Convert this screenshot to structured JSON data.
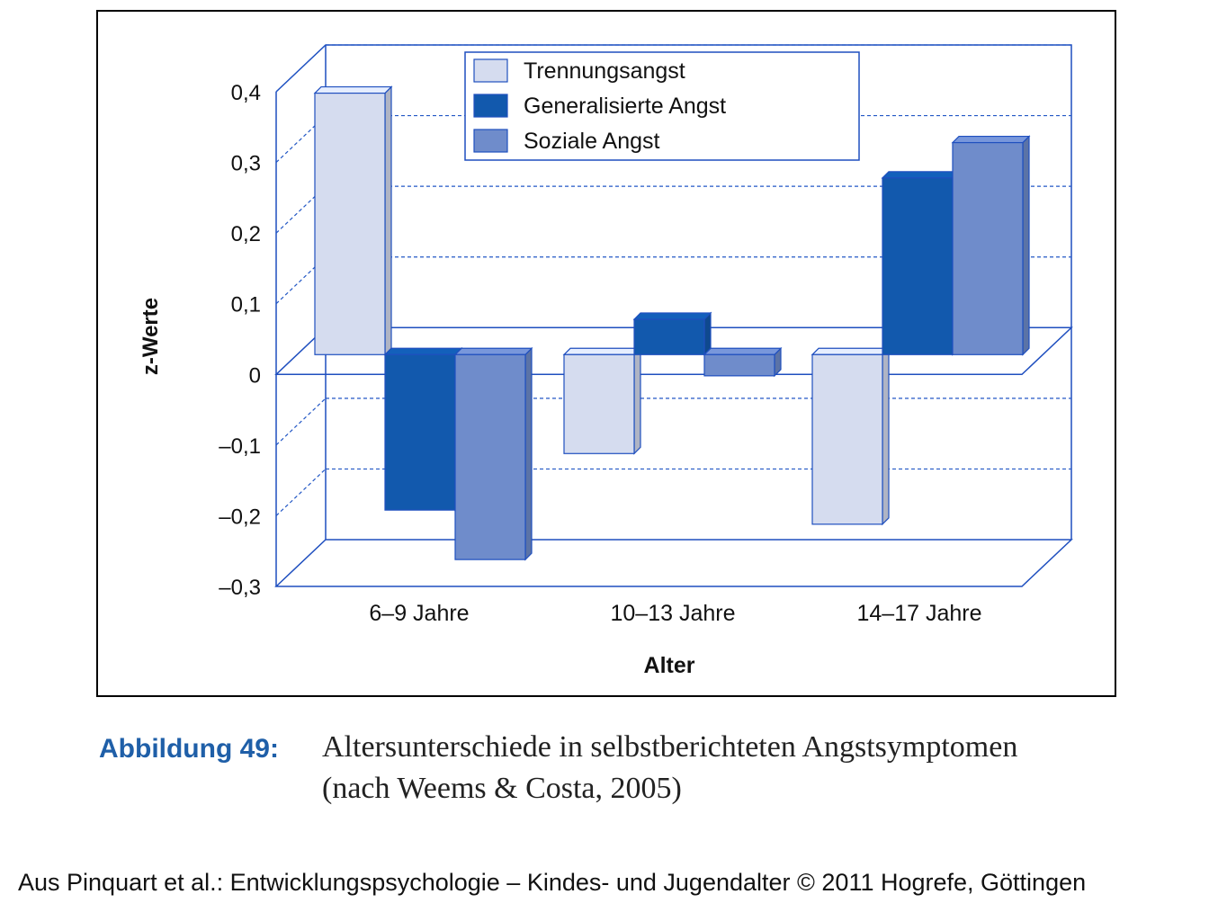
{
  "chart_data": {
    "type": "bar",
    "categories": [
      "6–9 Jahre",
      "10–13 Jahre",
      "14–17 Jahre"
    ],
    "series": [
      {
        "name": "Trennungsangst",
        "values": [
          0.37,
          -0.14,
          -0.24
        ],
        "color": "#d5dcef"
      },
      {
        "name": "Generalisierte Angst",
        "values": [
          -0.22,
          0.05,
          0.25
        ],
        "color": "#1259ad"
      },
      {
        "name": "Soziale Angst",
        "values": [
          -0.29,
          -0.03,
          0.3
        ],
        "color": "#6f8ccb"
      }
    ],
    "xlabel": "Alter",
    "ylabel": "z-Werte",
    "ylim": [
      -0.3,
      0.4
    ],
    "yticks": [
      0.4,
      0.3,
      0.2,
      0.1,
      0,
      -0.1,
      -0.2,
      -0.3
    ],
    "ytick_labels": [
      "0,4",
      "0,3",
      "0,2",
      "0,1",
      "0",
      "–0,1",
      "–0,2",
      "–0,3"
    ],
    "legend_position": "top-center",
    "grid": true,
    "style": "3d",
    "colors": {
      "wall": "#1f4fbf",
      "grid": "#2257c5"
    }
  },
  "caption": {
    "label": "Abbildung 49:",
    "line1": "Altersunterschiede in selbstberichteten Angstsymptomen",
    "line2": "(nach Weems & Costa, 2005)"
  },
  "source": "Aus Pinquart et al.: Entwicklungspsychologie – Kindes- und Jugendalter © 2011 Hogrefe, Göttingen"
}
